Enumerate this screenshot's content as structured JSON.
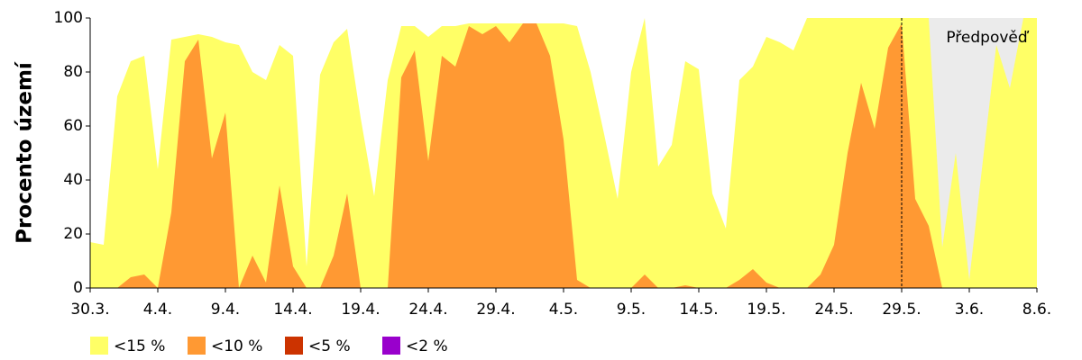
{
  "chart_data": {
    "type": "area",
    "ylabel": "Procento území",
    "categories": [
      "30.3.",
      null,
      null,
      null,
      null,
      "4.4.",
      null,
      null,
      null,
      null,
      "9.4.",
      null,
      null,
      null,
      null,
      "14.4.",
      null,
      null,
      null,
      null,
      "19.4.",
      null,
      null,
      null,
      null,
      "24.4.",
      null,
      null,
      null,
      null,
      "29.4.",
      null,
      null,
      null,
      null,
      "4.5.",
      null,
      null,
      null,
      null,
      "9.5.",
      null,
      null,
      null,
      null,
      "14.5.",
      null,
      null,
      null,
      null,
      "19.5.",
      null,
      null,
      null,
      null,
      "24.5.",
      null,
      null,
      null,
      null,
      "29.5.",
      null,
      null,
      null,
      null,
      "3.6.",
      null,
      null,
      null,
      null,
      "8.6."
    ],
    "series": [
      {
        "name": "<15 %",
        "color": "#ffff66",
        "values": [
          17,
          16,
          71,
          84,
          86,
          44,
          92,
          93,
          94,
          93,
          91,
          90,
          80,
          77,
          90,
          86,
          8,
          79,
          91,
          96,
          63,
          34,
          77,
          97,
          97,
          93,
          97,
          97,
          98,
          98,
          98,
          98,
          98,
          98,
          98,
          98,
          97,
          80,
          57,
          33,
          80,
          100,
          45,
          53,
          84,
          81,
          35,
          22,
          77,
          82,
          93,
          91,
          88,
          100,
          100,
          100,
          100,
          100,
          100,
          100,
          100,
          100,
          100,
          15,
          50,
          3,
          47,
          90,
          74,
          100,
          100
        ]
      },
      {
        "name": "<10 %",
        "color": "#ff9933",
        "values": [
          0,
          0,
          0,
          4,
          5,
          0,
          28,
          84,
          92,
          48,
          65,
          0,
          12,
          2,
          38,
          8,
          0,
          0,
          12,
          35,
          0,
          0,
          0,
          78,
          88,
          47,
          86,
          82,
          97,
          94,
          97,
          91,
          98,
          98,
          86,
          55,
          3,
          0,
          0,
          0,
          0,
          5,
          0,
          0,
          1,
          0,
          0,
          0,
          3,
          7,
          2,
          0,
          0,
          0,
          5,
          16,
          50,
          76,
          59,
          89,
          98,
          33,
          23,
          0,
          0,
          0,
          0,
          0,
          0,
          0,
          0
        ]
      },
      {
        "name": "<5 %",
        "color": "#cc3300",
        "values": [
          0,
          0,
          0,
          0,
          0,
          0,
          0,
          0,
          0,
          0,
          0,
          0,
          0,
          0,
          0,
          0,
          0,
          0,
          0,
          0,
          0,
          0,
          0,
          0,
          0,
          0,
          0,
          0,
          0,
          0,
          0,
          0,
          0,
          0,
          0,
          0,
          0,
          0,
          0,
          0,
          0,
          0,
          0,
          0,
          0,
          0,
          0,
          0,
          0,
          0,
          0,
          0,
          0,
          0,
          0,
          0,
          0,
          0,
          0,
          0,
          0,
          0,
          0,
          0,
          0,
          0,
          0,
          0,
          0,
          0,
          0
        ]
      },
      {
        "name": "<2 %",
        "color": "#9900cc",
        "values": [
          0,
          0,
          0,
          0,
          0,
          0,
          0,
          0,
          0,
          0,
          0,
          0,
          0,
          0,
          0,
          0,
          0,
          0,
          0,
          0,
          0,
          0,
          0,
          0,
          0,
          0,
          0,
          0,
          0,
          0,
          0,
          0,
          0,
          0,
          0,
          0,
          0,
          0,
          0,
          0,
          0,
          0,
          0,
          0,
          0,
          0,
          0,
          0,
          0,
          0,
          0,
          0,
          0,
          0,
          0,
          0,
          0,
          0,
          0,
          0,
          0,
          0,
          0,
          0,
          0,
          0,
          0,
          0,
          0,
          0,
          0
        ]
      }
    ],
    "ylim": [
      0,
      100
    ],
    "yticks": [
      0,
      20,
      40,
      60,
      80,
      100
    ],
    "forecast_start_index": 60,
    "forecast_label": "Předpověď",
    "forecast_color": "#ebebeb"
  }
}
